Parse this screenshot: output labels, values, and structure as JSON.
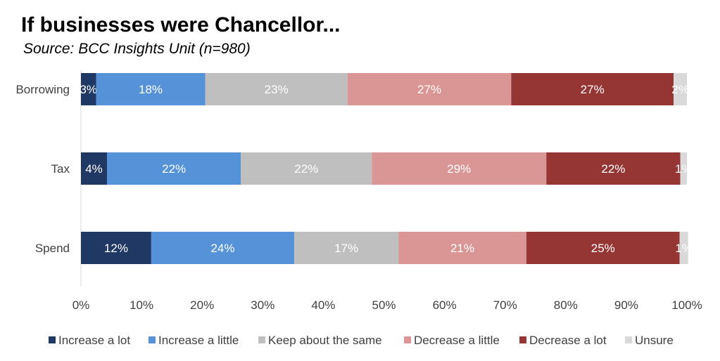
{
  "title": "If businesses were Chancellor...",
  "subtitle": "Source: BCC Insights Unit (n=980)",
  "chart_data": {
    "type": "bar",
    "orientation": "horizontal",
    "stacked": "100%",
    "title": "If businesses were Chancellor...",
    "subtitle": "Source: BCC Insights Unit (n=980)",
    "categories": [
      "Borrowing",
      "Tax",
      "Spend"
    ],
    "xlim": [
      0,
      100
    ],
    "x_ticks": [
      "0%",
      "10%",
      "20%",
      "30%",
      "40%",
      "50%",
      "60%",
      "70%",
      "80%",
      "90%",
      "100%"
    ],
    "grid": false,
    "legend_position": "bottom",
    "series": [
      {
        "name": "Increase a lot",
        "color": "#1f3864",
        "label_color": "#ffffff",
        "values": [
          2.5,
          4.3,
          11.6
        ],
        "labels": [
          "3%",
          "4%",
          "12%"
        ]
      },
      {
        "name": "Increase a little",
        "color": "#5592d8",
        "label_color": "#ffffff",
        "values": [
          18.0,
          22.1,
          23.6
        ],
        "labels": [
          "18%",
          "22%",
          "24%"
        ]
      },
      {
        "name": "Keep about the same",
        "color": "#bfbfbf",
        "label_color": "#ffffff",
        "values": [
          23.5,
          21.6,
          17.2
        ],
        "labels": [
          "23%",
          "22%",
          "17%"
        ]
      },
      {
        "name": "Decrease a little",
        "color": "#da9694",
        "label_color": "#ffffff",
        "values": [
          27.0,
          28.8,
          21.1
        ],
        "labels": [
          "27%",
          "29%",
          "21%"
        ]
      },
      {
        "name": "Decrease a lot",
        "color": "#963634",
        "label_color": "#ffffff",
        "values": [
          26.8,
          22.1,
          25.3
        ],
        "labels": [
          "27%",
          "22%",
          "25%"
        ]
      },
      {
        "name": "Unsure",
        "color": "#d9d9d9",
        "label_color": "#ffffff",
        "values": [
          2.2,
          1.1,
          1.4
        ],
        "labels": [
          "2%",
          "1%",
          "1%"
        ]
      }
    ]
  }
}
